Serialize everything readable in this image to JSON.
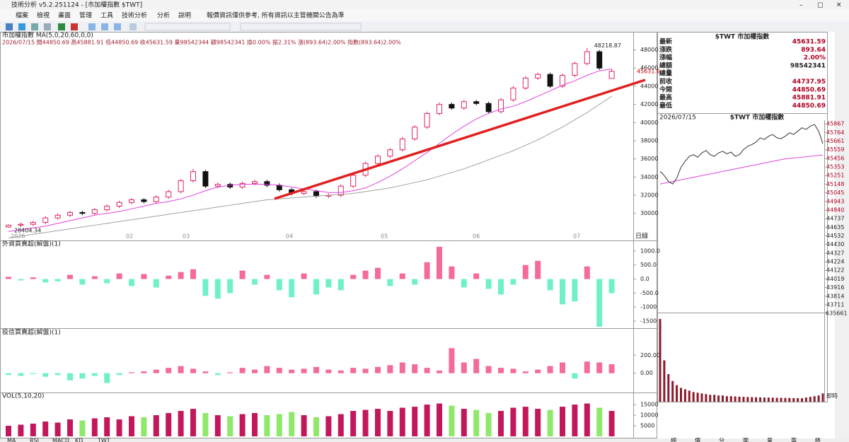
{
  "window": {
    "title": "技術分析 v5.2.251124 - [市加權指數 $TWT]",
    "menu": [
      "檔案",
      "檢視",
      "畫面",
      "管理",
      "工具",
      "技術分析",
      "分析",
      "說明"
    ],
    "notice": "報價資訊僅供參考, 所有資訊以主管機關公告為準"
  },
  "chart": {
    "header": "市加權指數 MA(5,0,20,60,0,0)",
    "subheader": "2026/07/15 開44850.69 高45881.91 低44850.69 收45631.59 量98542344 額98542341 換0.00% 振2.31% 漲(893.64)2.00% 指數(893.64)2.00%",
    "period": "日線",
    "last_label": "45631.6",
    "candles": [
      [
        28500,
        28800,
        28404.34,
        28700
      ],
      [
        28700,
        29000,
        28500,
        28800
      ],
      [
        28800,
        29200,
        28600,
        29000
      ],
      [
        29000,
        29700,
        28800,
        29500
      ],
      [
        29500,
        30000,
        29300,
        29800
      ],
      [
        29800,
        30300,
        29600,
        30100
      ],
      [
        30100,
        30300,
        29800,
        30000
      ],
      [
        30000,
        30600,
        29800,
        30400
      ],
      [
        30400,
        31000,
        30200,
        30800
      ],
      [
        30800,
        31400,
        30600,
        31200
      ],
      [
        31200,
        31700,
        31000,
        31500
      ],
      [
        31500,
        31700,
        31100,
        31300
      ],
      [
        31300,
        32000,
        31100,
        31800
      ],
      [
        31800,
        32600,
        31600,
        32400
      ],
      [
        32400,
        33800,
        32200,
        33600
      ],
      [
        33600,
        34900,
        33400,
        34600
      ],
      [
        34600,
        34800,
        32800,
        33000
      ],
      [
        33000,
        33400,
        32800,
        33200
      ],
      [
        33200,
        33400,
        32700,
        32900
      ],
      [
        32900,
        33500,
        32700,
        33300
      ],
      [
        33300,
        33700,
        33100,
        33500
      ],
      [
        33500,
        33700,
        32900,
        33100
      ],
      [
        33100,
        33300,
        32400,
        32600
      ],
      [
        32600,
        32800,
        32000,
        32200
      ],
      [
        32200,
        32600,
        32000,
        32400
      ],
      [
        32400,
        32600,
        31700,
        31900
      ],
      [
        31900,
        32200,
        31700,
        32000
      ],
      [
        32000,
        33200,
        31800,
        33000
      ],
      [
        33000,
        34400,
        32800,
        34200
      ],
      [
        34200,
        35700,
        34000,
        35500
      ],
      [
        35500,
        36500,
        35300,
        36300
      ],
      [
        36300,
        37200,
        36100,
        37000
      ],
      [
        37000,
        38400,
        36800,
        38200
      ],
      [
        38200,
        39700,
        38000,
        39500
      ],
      [
        39500,
        41200,
        39300,
        41000
      ],
      [
        41000,
        42200,
        40800,
        42000
      ],
      [
        42000,
        42200,
        41400,
        41600
      ],
      [
        41600,
        42500,
        41400,
        42300
      ],
      [
        42300,
        42500,
        41900,
        42100
      ],
      [
        42100,
        42300,
        41000,
        41200
      ],
      [
        41200,
        42700,
        41000,
        42500
      ],
      [
        42500,
        44000,
        42300,
        43800
      ],
      [
        43800,
        45100,
        43600,
        44900
      ],
      [
        44900,
        45500,
        44700,
        45300
      ],
      [
        45300,
        45500,
        43800,
        44000
      ],
      [
        44000,
        45400,
        43800,
        45200
      ],
      [
        45200,
        46700,
        45000,
        46500
      ],
      [
        46500,
        48218.87,
        46300,
        47800
      ],
      [
        47800,
        48000,
        45800,
        46000
      ],
      [
        44850.69,
        45881.91,
        44850.69,
        45631.59
      ]
    ],
    "ma20": [
      28000,
      28200,
      28400,
      28600,
      28900,
      29200,
      29500,
      29800,
      30000,
      30200,
      30500,
      30800,
      31100,
      31300,
      31600,
      32000,
      32500,
      32900,
      33100,
      33200,
      33200,
      33200,
      33100,
      32900,
      32700,
      32500,
      32300,
      32300,
      32500,
      32800,
      33400,
      34100,
      34900,
      35800,
      36700,
      37700,
      38700,
      39600,
      40400,
      41000,
      41500,
      41800,
      42300,
      42900,
      43500,
      44100,
      44600,
      45200,
      45700,
      45900
    ],
    "ma60": [
      27300,
      27500,
      27700,
      27900,
      28100,
      28300,
      28500,
      28700,
      28900,
      29100,
      29300,
      29500,
      29700,
      29900,
      30100,
      30300,
      30500,
      30700,
      30900,
      31100,
      31300,
      31500,
      31600,
      31700,
      31800,
      31900,
      32000,
      32100,
      32200,
      32400,
      32600,
      32800,
      33100,
      33400,
      33700,
      34100,
      34500,
      34900,
      35400,
      35900,
      36400,
      36900,
      37500,
      38100,
      38800,
      39500,
      40300,
      41100,
      42000,
      42900
    ],
    "up_color": "#e0245e",
    "down_color": "#111111",
    "ma20_color": "#e040e0",
    "ma60_color": "#a0a0a0",
    "ylim": [
      27800,
      49600
    ],
    "yticks": [
      30000,
      32000,
      34000,
      36000,
      38000,
      40000,
      42000,
      44000,
      46000,
      48000
    ],
    "months": [
      "2026",
      "02",
      "03",
      "04",
      "05",
      "06",
      "07"
    ]
  },
  "foreign": {
    "title": "外資買賣超(解盤)(1)",
    "values": [
      80,
      -50,
      60,
      -120,
      -80,
      150,
      -200,
      100,
      -150,
      200,
      -250,
      180,
      -300,
      120,
      250,
      350,
      -600,
      -700,
      -500,
      300,
      -200,
      150,
      -400,
      -650,
      200,
      -550,
      -300,
      -400,
      150,
      300,
      400,
      -250,
      200,
      -200,
      600,
      1150,
      450,
      -300,
      200,
      -350,
      -550,
      -200,
      500,
      650,
      -400,
      -900,
      -800,
      450,
      -1700,
      -500
    ],
    "pos_color": "#f46a9b",
    "neg_color": "#6ff0c8",
    "ylim": [
      -1700,
      1300
    ],
    "yticks": [
      {
        "value": 1000,
        "label": "1000.0"
      },
      {
        "value": 500,
        "label": "500.0"
      },
      {
        "value": 0,
        "label": "0.0"
      },
      {
        "value": -500,
        "label": "-500.0"
      },
      -1000,
      -1500
    ]
  },
  "trust": {
    "title": "投信買賣超(解盤)(1)",
    "values": [
      -20,
      -30,
      -10,
      -40,
      -20,
      -80,
      -60,
      -30,
      -110,
      -20,
      10,
      20,
      40,
      60,
      80,
      50,
      20,
      -20,
      10,
      60,
      40,
      80,
      60,
      40,
      50,
      70,
      40,
      30,
      60,
      50,
      70,
      90,
      120,
      100,
      60,
      30,
      280,
      120,
      160,
      80,
      60,
      50,
      20,
      40,
      80,
      120,
      -60,
      130,
      120,
      100
    ],
    "ylim": [
      -200,
      480
    ],
    "yticks": [
      {
        "value": 200,
        "label": "200.00"
      },
      {
        "value": 0,
        "label": "0.00"
      }
    ]
  },
  "volume": {
    "title": "VOL(5,10,20)",
    "values": [
      5000,
      5500,
      6000,
      7000,
      6500,
      8000,
      7500,
      8500,
      9000,
      8000,
      9500,
      9000,
      10000,
      11000,
      12000,
      13000,
      11000,
      10000,
      9500,
      10500,
      11000,
      10000,
      10500,
      11500,
      10000,
      9000,
      9500,
      10500,
      12000,
      12500,
      13000,
      12000,
      13500,
      14000,
      15000,
      15500,
      14500,
      13000,
      12500,
      11000,
      12000,
      13500,
      14000,
      13000,
      12500,
      14000,
      15000,
      15500,
      13500,
      12000
    ],
    "up_color": "#c2185b",
    "down_color": "#8ee86a",
    "ylim": [
      0,
      19700
    ],
    "yticks": [
      5000,
      10000,
      15000
    ]
  },
  "quote": {
    "title": "$TWT 市加權指數",
    "rows": [
      {
        "label": "最新",
        "value": "45631.59"
      },
      {
        "label": "漲跌",
        "value": "893.64"
      },
      {
        "label": "漲幅",
        "value": "2.00%"
      },
      {
        "label": "總額",
        "value": "98542341"
      },
      {
        "label": "總量"
      },
      {
        "label": "前收",
        "value": "44737.95"
      },
      {
        "label": "今開",
        "value": "44850.69"
      },
      {
        "label": "最高",
        "value": "45881.91"
      },
      {
        "label": "最低",
        "value": "44850.69"
      }
    ]
  },
  "intraday": {
    "date": "2026/07/15",
    "title": "$TWT 市加權指數",
    "prev_close": 44737.95,
    "values": [
      45300,
      45250,
      45180,
      45150,
      45220,
      45350,
      45420,
      45480,
      45500,
      45470,
      45520,
      45550,
      45500,
      45480,
      45520,
      45540,
      45510,
      45530,
      45480,
      45500,
      45560,
      45600,
      45620,
      45650,
      45700,
      45680,
      45720,
      45740,
      45700,
      45690,
      45720,
      45760,
      45740,
      45780,
      45820,
      45800,
      45840,
      45860,
      45780,
      45631.59
    ],
    "avg": [
      45150,
      45160,
      45170,
      45180,
      45190,
      45200,
      45210,
      45220,
      45230,
      45240,
      45250,
      45260,
      45270,
      45280,
      45290,
      45300,
      45310,
      45320,
      45330,
      45340,
      45350,
      45360,
      45370,
      45380,
      45390,
      45400,
      45410,
      45420,
      45430,
      45440,
      45450,
      45455,
      45460,
      45465,
      45470,
      45475,
      45480,
      45485,
      45490,
      45495
    ],
    "ylim": [
      43635,
      45910
    ],
    "yticks": [
      45867,
      45764,
      45661,
      45559,
      45456,
      45353,
      45251,
      45148,
      45045,
      44943,
      44840,
      44737,
      44635,
      44532,
      44430,
      44327,
      44224,
      44122,
      44019,
      43916,
      43814,
      43711
    ],
    "volume": [
      600000,
      300000,
      200000,
      150000,
      120000,
      100000,
      90000,
      80000,
      70000,
      65000,
      60000,
      55000,
      50000,
      50000,
      45000,
      45000,
      40000,
      40000,
      38000,
      36000,
      35000,
      34000,
      33000,
      32000,
      31000,
      30000,
      30000,
      29000,
      28000,
      28000,
      27000,
      27000,
      26000,
      26000,
      25000,
      30000,
      35000,
      40000,
      45000,
      60000
    ],
    "vol_max": 635661,
    "time_label": "即時"
  },
  "tabs": [
    "MA",
    "RSI",
    "MACD",
    "KD",
    "TWT"
  ],
  "right_tabs": [
    "細",
    "價",
    "分",
    "圖",
    "量",
    "籌",
    "帳"
  ]
}
